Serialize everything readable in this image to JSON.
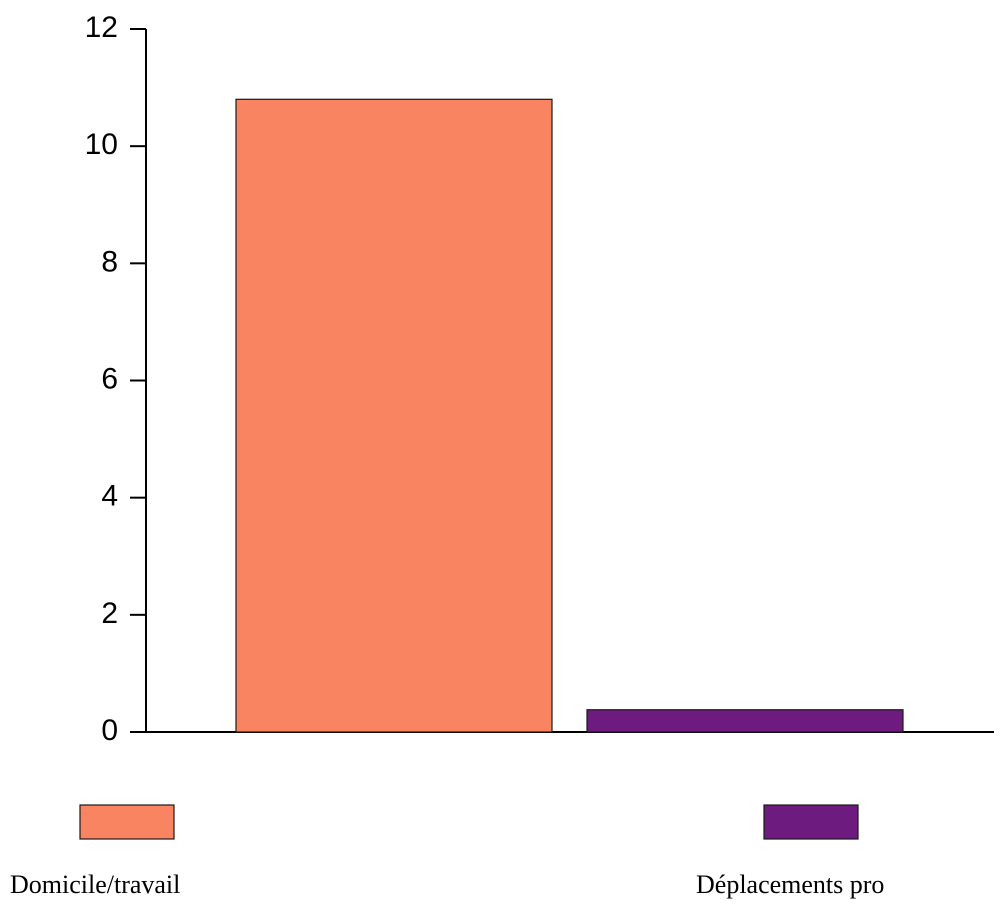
{
  "chart_data": {
    "type": "bar",
    "categories": [
      "Domicile/travail",
      "Déplacements pro"
    ],
    "values": [
      10.8,
      0.38
    ],
    "colors": [
      "#f98461",
      "#6d1b7f"
    ],
    "ylim": [
      0,
      12
    ],
    "yticks": [
      0,
      2,
      4,
      6,
      8,
      10,
      12
    ],
    "title": "",
    "xlabel": "",
    "ylabel": "",
    "grid": false,
    "legend_position": "bottom"
  }
}
